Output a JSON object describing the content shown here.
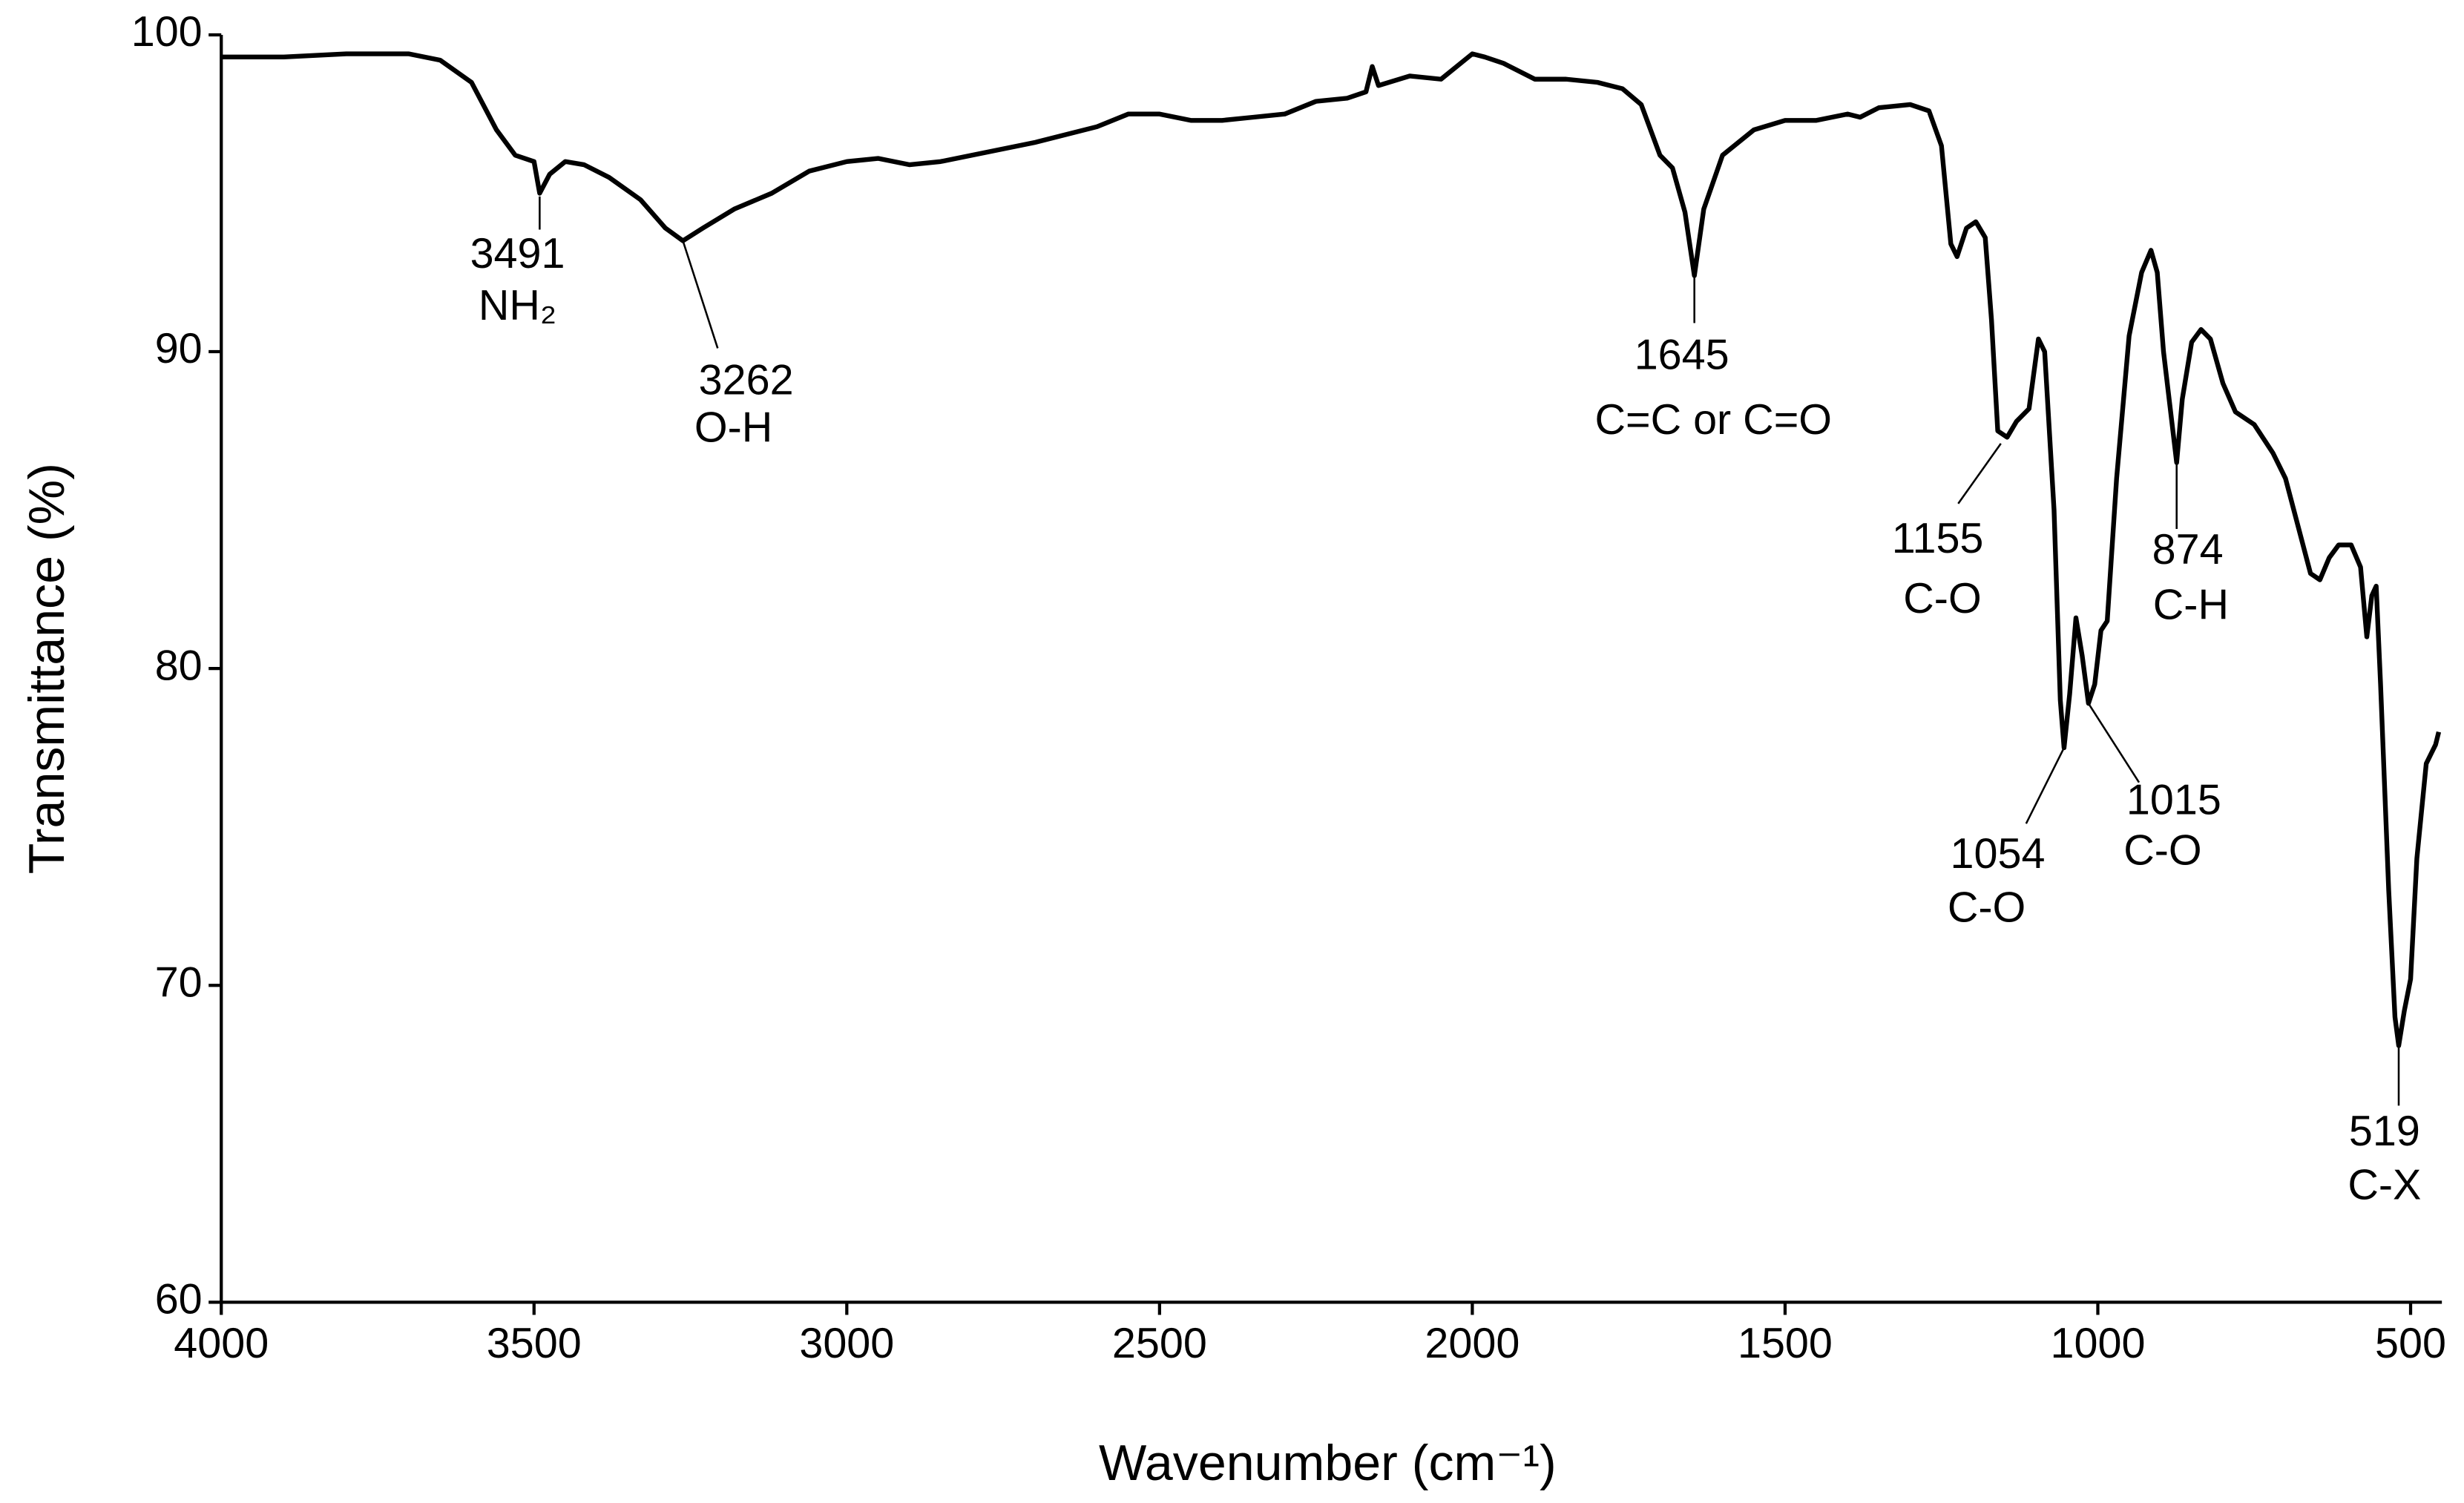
{
  "chart_data": {
    "type": "line",
    "x_label": "Wavenumber (cm⁻¹)",
    "y_label": "Transmittance (%)",
    "xlim": [
      4000,
      450
    ],
    "ylim": [
      60,
      100
    ],
    "xticks": [
      4000,
      3500,
      3000,
      2500,
      2000,
      1500,
      1000,
      500
    ],
    "yticks": [
      60,
      70,
      80,
      90,
      100
    ],
    "x": [
      4000,
      3900,
      3800,
      3700,
      3650,
      3600,
      3560,
      3530,
      3500,
      3491,
      3475,
      3450,
      3420,
      3380,
      3330,
      3290,
      3262,
      3230,
      3180,
      3120,
      3060,
      3000,
      2950,
      2900,
      2850,
      2800,
      2700,
      2600,
      2550,
      2500,
      2450,
      2400,
      2350,
      2300,
      2250,
      2200,
      2170,
      2160,
      2150,
      2100,
      2050,
      2000,
      1980,
      1950,
      1900,
      1850,
      1800,
      1760,
      1730,
      1700,
      1680,
      1660,
      1645,
      1630,
      1600,
      1550,
      1500,
      1450,
      1400,
      1380,
      1350,
      1300,
      1270,
      1250,
      1235,
      1225,
      1210,
      1195,
      1180,
      1170,
      1160,
      1145,
      1130,
      1110,
      1095,
      1085,
      1070,
      1060,
      1054,
      1045,
      1035,
      1025,
      1015,
      1005,
      995,
      985,
      970,
      950,
      930,
      915,
      905,
      895,
      880,
      874,
      865,
      850,
      835,
      820,
      800,
      780,
      750,
      720,
      700,
      680,
      660,
      645,
      630,
      615,
      595,
      580,
      570,
      562,
      555,
      548,
      535,
      525,
      519,
      510,
      500,
      490,
      475,
      460,
      455
    ],
    "series": [
      {
        "color": "#000000",
        "values": [
          99.3,
          99.3,
          99.4,
          99.4,
          99.2,
          98.5,
          97.0,
          96.2,
          96.0,
          95.0,
          95.6,
          96.0,
          95.9,
          95.5,
          94.8,
          93.9,
          93.5,
          93.9,
          94.5,
          95.0,
          95.7,
          96.0,
          96.1,
          95.9,
          96.0,
          96.2,
          96.6,
          97.1,
          97.5,
          97.5,
          97.3,
          97.3,
          97.4,
          97.5,
          97.9,
          98.0,
          98.2,
          99.0,
          98.4,
          98.7,
          98.6,
          99.4,
          99.3,
          99.1,
          98.6,
          98.6,
          98.5,
          98.3,
          97.8,
          96.2,
          95.8,
          94.4,
          92.4,
          94.5,
          96.2,
          97.0,
          97.3,
          97.3,
          97.5,
          97.4,
          97.7,
          97.8,
          97.6,
          96.5,
          93.4,
          93.0,
          93.9,
          94.1,
          93.6,
          91.0,
          87.5,
          87.3,
          87.8,
          88.2,
          90.4,
          90.0,
          85.0,
          79.0,
          77.5,
          79.2,
          81.6,
          80.4,
          78.9,
          79.5,
          81.2,
          81.5,
          86.0,
          90.5,
          92.5,
          93.2,
          92.5,
          90.0,
          87.5,
          86.5,
          88.5,
          90.3,
          90.7,
          90.4,
          89.0,
          88.1,
          87.7,
          86.8,
          86.0,
          84.5,
          83.0,
          82.8,
          83.5,
          83.9,
          83.9,
          83.2,
          81.0,
          82.3,
          82.6,
          79.5,
          73.0,
          69.0,
          68.1,
          69.2,
          70.2,
          74.0,
          77.0,
          77.6,
          78.0
        ]
      }
    ],
    "annotations": [
      {
        "x": 3491,
        "y": 94.9,
        "label": "NH₂"
      },
      {
        "x": 3262,
        "y": 93.5,
        "label": "O-H"
      },
      {
        "x": 1645,
        "y": 92.4,
        "label": "C=C or C=O"
      },
      {
        "x": 1155,
        "y": 87.1,
        "label": "C-O"
      },
      {
        "x": 1054,
        "y": 77.5,
        "label": "C-O"
      },
      {
        "x": 1015,
        "y": 78.9,
        "label": "C-O"
      },
      {
        "x": 874,
        "y": 86.5,
        "label": "C-H"
      },
      {
        "x": 519,
        "y": 68.1,
        "label": "C-X"
      }
    ]
  }
}
